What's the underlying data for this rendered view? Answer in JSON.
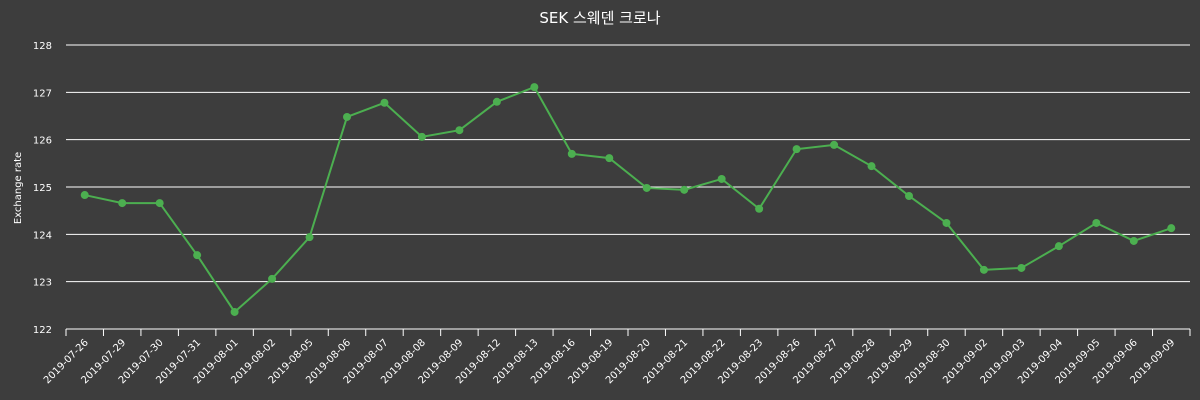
{
  "chart_data": {
    "type": "line",
    "title": "SEK 스웨덴 크로나",
    "xlabel": "",
    "ylabel": "Exchange rate",
    "ylim": [
      122,
      128
    ],
    "yticks": [
      122,
      123,
      124,
      125,
      126,
      127,
      128
    ],
    "grid": true,
    "legend": null,
    "colors": {
      "background": "#3d3d3d",
      "line": "#4caf50",
      "marker": "#4caf50",
      "grid": "#ffffff",
      "text": "#ffffff"
    },
    "categories": [
      "2019-07-26",
      "2019-07-29",
      "2019-07-30",
      "2019-07-31",
      "2019-08-01",
      "2019-08-02",
      "2019-08-05",
      "2019-08-06",
      "2019-08-07",
      "2019-08-08",
      "2019-08-09",
      "2019-08-12",
      "2019-08-13",
      "2019-08-16",
      "2019-08-19",
      "2019-08-20",
      "2019-08-21",
      "2019-08-22",
      "2019-08-23",
      "2019-08-26",
      "2019-08-27",
      "2019-08-28",
      "2019-08-29",
      "2019-08-30",
      "2019-09-02",
      "2019-09-03",
      "2019-09-04",
      "2019-09-05",
      "2019-09-06",
      "2019-09-09"
    ],
    "series": [
      {
        "name": "SEK",
        "values": [
          124.83,
          124.66,
          124.66,
          123.56,
          122.36,
          123.06,
          123.94,
          126.48,
          126.78,
          126.06,
          126.2,
          126.8,
          127.11,
          125.7,
          125.61,
          124.98,
          124.94,
          125.17,
          124.54,
          125.8,
          125.89,
          125.44,
          124.81,
          124.24,
          123.25,
          123.29,
          123.75,
          124.24,
          123.86,
          124.13
        ]
      }
    ]
  }
}
